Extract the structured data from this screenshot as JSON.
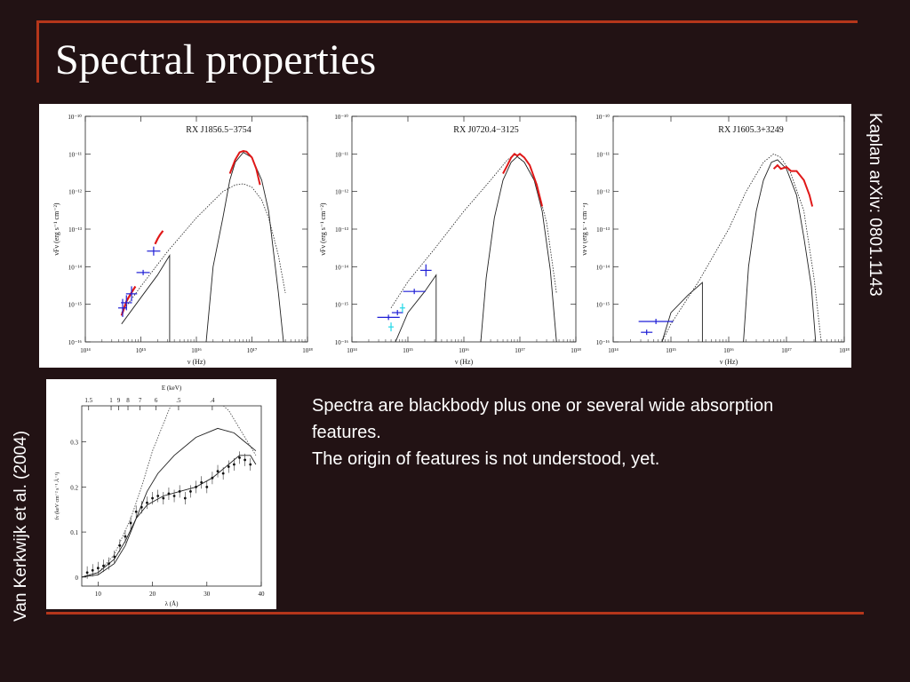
{
  "slide": {
    "title": "Spectral properties",
    "side_caption_right": "Kaplan arXiv: 0801.1143",
    "side_caption_left": "Van Kerkwijk et al. (2004)",
    "description": [
      "Spectra are blackbody plus one or several wide absorption features.",
      "The origin of features is not understood, yet."
    ]
  },
  "colors": {
    "background": "#221214",
    "accent": "#b5361b",
    "text": "#ffffff",
    "optical_points": "#1f1fd6",
    "xray_points": "#e01818",
    "uv_points": "#22d8e8"
  },
  "chart_data": [
    {
      "type": "line",
      "title": "RX J1856.5−3754",
      "xlabel": "ν (Hz)",
      "ylabel": "νFν (erg s⁻¹ cm⁻²)",
      "xscale": "log",
      "yscale": "log",
      "xlim": [
        100000000000000.0,
        1e+18
      ],
      "ylim": [
        1e-16,
        1e-10
      ],
      "xtick_labels": [
        "10¹⁴",
        "10¹⁵",
        "10¹⁶",
        "10¹⁷",
        "10¹⁸"
      ],
      "ytick_labels": [
        "10⁻¹⁶",
        "10⁻¹⁵",
        "10⁻¹⁴",
        "10⁻¹³",
        "10⁻¹²",
        "10⁻¹¹",
        "10⁻¹⁰"
      ],
      "series": [
        {
          "style": "dotted",
          "x": [
            450000000000000.0,
            1000000000000000.0,
            3000000000000000.0,
            1e+16,
            3e+16,
            5e+16,
            7e+16,
            1e+17,
            1.5e+17,
            2e+17,
            3e+17,
            4e+17
          ],
          "y": [
            6e-16,
            3e-15,
            2.5e-14,
            2e-13,
            1e-12,
            1.5e-12,
            1.6e-12,
            1.3e-12,
            6e-13,
            2e-13,
            2e-14,
            2e-15
          ]
        },
        {
          "style": "solid",
          "x": [
            450000000000000.0,
            1000000000000000.0,
            2000000000000000.0,
            3300000000000000.0,
            3300000000000000.0
          ],
          "y": [
            3e-16,
            1.5e-15,
            6e-15,
            2e-14,
            1e-16
          ]
        },
        {
          "style": "solid",
          "x": [
            1.5e+16,
            2e+16,
            3e+16,
            4e+16,
            5e+16,
            7e+16,
            1e+17,
            1.5e+17,
            2e+17,
            3e+17,
            3.7e+17
          ],
          "y": [
            1e-16,
            1e-14,
            2e-13,
            2e-12,
            6e-12,
            1.1e-11,
            8e-12,
            2e-12,
            3e-13,
            2e-15,
            1e-16
          ]
        },
        {
          "style": "xray",
          "x": [
            4e+16,
            5e+16,
            6e+16,
            7e+16,
            8e+16,
            1e+17,
            1.2e+17,
            1.4e+17
          ],
          "y": [
            3e-12,
            7e-12,
            1.1e-11,
            1.2e-11,
            1.15e-11,
            8e-12,
            4e-12,
            1.5e-12
          ]
        },
        {
          "style": "optical-red",
          "x": [
            450000000000000.0,
            500000000000000.0,
            550000000000000.0,
            600000000000000.0,
            700000000000000.0,
            800000000000000.0
          ],
          "y": [
            5e-16,
            8e-16,
            1.2e-15,
            1.5e-15,
            2.2e-15,
            3e-15
          ]
        },
        {
          "style": "uv-red",
          "x": [
            1800000000000000.0,
            2000000000000000.0,
            2200000000000000.0,
            2500000000000000.0
          ],
          "y": [
            4e-14,
            5.5e-14,
            7e-14,
            9e-14
          ]
        }
      ],
      "errorbars": [
        {
          "x": 470000000000000.0,
          "y": 8e-16,
          "dx": 0.04,
          "dy": 0.12
        },
        {
          "x": 550000000000000.0,
          "y": 1.1e-15,
          "dx": 0.05,
          "dy": 0.1
        },
        {
          "x": 680000000000000.0,
          "y": 1.9e-15,
          "dx": 0.05,
          "dy": 0.1
        },
        {
          "x": 1100000000000000.0,
          "y": 7e-15,
          "dx": 0.06,
          "dy": 0
        },
        {
          "x": 1700000000000000.0,
          "y": 2.6e-14,
          "dx": 0.06,
          "dy": 0.06
        }
      ]
    },
    {
      "type": "line",
      "title": "RX J0720.4−3125",
      "xlabel": "ν (Hz)",
      "ylabel": "νFν (erg s⁻¹ cm⁻²)",
      "xscale": "log",
      "yscale": "log",
      "xlim": [
        100000000000000.0,
        1e+18
      ],
      "ylim": [
        1e-16,
        1e-10
      ],
      "xtick_labels": [
        "10¹⁴",
        "10¹⁵",
        "10¹⁶",
        "10¹⁷",
        "10¹⁸"
      ],
      "ytick_labels": [
        "10⁻¹⁶",
        "10⁻¹⁵",
        "10⁻¹⁴",
        "10⁻¹³",
        "10⁻¹²",
        "10⁻¹¹",
        "10⁻¹⁰"
      ],
      "series": [
        {
          "style": "dotted",
          "x": [
            500000000000000.0,
            1000000000000000.0,
            3000000000000000.0,
            1e+16,
            3e+16,
            6e+16,
            8e+16,
            1.2e+17,
            2e+17,
            3e+17,
            4.5e+17
          ],
          "y": [
            8e-16,
            4e-15,
            3e-14,
            3e-13,
            2e-12,
            7e-12,
            9.5e-12,
            6e-12,
            1.5e-12,
            1.5e-13,
            2e-15
          ]
        },
        {
          "style": "solid",
          "x": [
            600000000000000.0,
            1000000000000000.0,
            2000000000000000.0,
            3200000000000000.0,
            3200000000000000.0
          ],
          "y": [
            1e-16,
            6e-16,
            2.2e-15,
            6e-15,
            1e-16
          ]
        },
        {
          "style": "solid",
          "x": [
            2e+16,
            2.5e+16,
            3.5e+16,
            5e+16,
            7e+16,
            9e+16,
            1.2e+17,
            1.8e+17,
            2.5e+17,
            3.5e+17,
            4.5e+17
          ],
          "y": [
            1e-16,
            5e-15,
            2e-13,
            2e-12,
            6e-12,
            8.5e-12,
            6e-12,
            2e-12,
            3e-13,
            8e-15,
            1e-16
          ]
        },
        {
          "style": "xray",
          "x": [
            5e+16,
            6e+16,
            7e+16,
            8e+16,
            9e+16,
            1e+17,
            1.2e+17,
            1.5e+17,
            2e+17,
            2.5e+17
          ],
          "y": [
            3e-12,
            5e-12,
            8e-12,
            1e-11,
            9e-12,
            1e-11,
            8e-12,
            5e-12,
            1.5e-12,
            4e-13
          ]
        }
      ],
      "errorbars": [
        {
          "x": 450000000000000.0,
          "y": 4.5e-16,
          "dx": 0.1,
          "dy": 0
        },
        {
          "x": 650000000000000.0,
          "y": 6e-16,
          "dx": 0.05,
          "dy": 0
        },
        {
          "x": 1300000000000000.0,
          "y": 2.2e-15,
          "dx": 0.1,
          "dy": 0
        },
        {
          "x": 2100000000000000.0,
          "y": 8e-15,
          "dx": 0.05,
          "dy": 0.08
        }
      ],
      "uv_points": [
        {
          "x": 500000000000000.0,
          "y": 2.5e-16
        },
        {
          "x": 800000000000000.0,
          "y": 8e-16
        }
      ]
    },
    {
      "type": "line",
      "title": "RX J1605.3+3249",
      "xlabel": "ν (Hz)",
      "ylabel": "νFν (erg s⁻¹ cm⁻²)",
      "xscale": "log",
      "yscale": "log",
      "xlim": [
        100000000000000.0,
        1e+18
      ],
      "ylim": [
        1e-16,
        1e-10
      ],
      "xtick_labels": [
        "10¹⁴",
        "10¹⁵",
        "10¹⁶",
        "10¹⁷",
        "10¹⁸"
      ],
      "ytick_labels": [
        "10⁻¹⁶",
        "10⁻¹⁵",
        "10⁻¹⁴",
        "10⁻¹³",
        "10⁻¹²",
        "10⁻¹¹",
        "10⁻¹⁰"
      ],
      "series": [
        {
          "style": "dotted",
          "x": [
            700000000000000.0,
            1000000000000000.0,
            3000000000000000.0,
            1e+16,
            2e+16,
            4e+16,
            6e+16,
            8e+16,
            1.2e+17,
            2e+17,
            3e+17,
            4e+17
          ],
          "y": [
            1e-16,
            3e-16,
            4e-15,
            1e-13,
            1e-12,
            6e-12,
            1e-11,
            8e-12,
            3e-12,
            3e-13,
            5e-15,
            1e-16
          ]
        },
        {
          "style": "solid",
          "x": [
            700000000000000.0,
            1000000000000000.0,
            2000000000000000.0,
            3500000000000000.0,
            3500000000000000.0
          ],
          "y": [
            1e-16,
            6e-16,
            1.8e-15,
            3.8e-15,
            1e-16
          ]
        },
        {
          "style": "solid",
          "x": [
            1.8e+16,
            2.2e+16,
            3e+16,
            4e+16,
            5.5e+16,
            7e+16,
            1e+17,
            1.5e+17,
            2e+17,
            2.7e+17,
            3.2e+17
          ],
          "y": [
            1e-16,
            1e-14,
            3e-13,
            2e-12,
            6e-12,
            7e-12,
            4e-12,
            8e-13,
            6e-14,
            3e-15,
            1e-16
          ]
        },
        {
          "style": "xray",
          "x": [
            6e+16,
            7e+16,
            8e+16,
            1e+17,
            1.2e+17,
            1.5e+17,
            2e+17,
            2.5e+17,
            2.8e+17
          ],
          "y": [
            4e-12,
            5e-12,
            4e-12,
            4.5e-12,
            3.5e-12,
            3.5e-12,
            2e-12,
            8e-13,
            4e-13
          ]
        }
      ],
      "errorbars": [
        {
          "x": 550000000000000.0,
          "y": 3.5e-16,
          "dx": 0.15,
          "dy": 0
        },
        {
          "x": 380000000000000.0,
          "y": 1.8e-16,
          "dx": 0.05,
          "dy": 0
        }
      ]
    },
    {
      "type": "line",
      "top_axis_title": "E (keV)",
      "top_tick_labels": [
        "1.5",
        "1",
        "9",
        "8",
        "7",
        "6",
        ".5",
        ".4"
      ],
      "xlabel": "λ (Å)",
      "ylabel": "fν (keV cm⁻² s⁻¹ Å⁻¹)",
      "xlim": [
        7,
        40
      ],
      "ylim": [
        -0.02,
        0.38
      ],
      "xtick_labels": [
        "10",
        "20",
        "30",
        "40"
      ],
      "ytick_labels": [
        "0",
        "0.1",
        "0.2",
        "0.3"
      ],
      "series": [
        {
          "style": "dotted",
          "x": [
            7,
            10,
            13,
            16,
            18,
            20,
            23,
            26
          ],
          "y": [
            0.0,
            0.01,
            0.05,
            0.13,
            0.2,
            0.28,
            0.37,
            0.45
          ]
        },
        {
          "style": "dotted",
          "x": [
            33,
            34,
            35,
            36,
            37,
            38,
            39
          ],
          "y": [
            0.38,
            0.37,
            0.35,
            0.33,
            0.31,
            0.29,
            0.27
          ]
        },
        {
          "style": "solid",
          "x": [
            7,
            10,
            13,
            15,
            17,
            19,
            21,
            24,
            28,
            32,
            35,
            37,
            39
          ],
          "y": [
            0.0,
            0.005,
            0.03,
            0.07,
            0.13,
            0.19,
            0.23,
            0.27,
            0.31,
            0.33,
            0.32,
            0.3,
            0.28
          ]
        },
        {
          "style": "solid",
          "x": [
            7,
            10,
            13,
            15,
            17,
            19,
            22,
            25,
            28,
            31,
            34,
            36,
            38,
            39
          ],
          "y": [
            0.0,
            0.01,
            0.04,
            0.08,
            0.13,
            0.16,
            0.18,
            0.19,
            0.2,
            0.22,
            0.25,
            0.27,
            0.27,
            0.25
          ]
        }
      ],
      "data_points": {
        "x": [
          8,
          9,
          10,
          11,
          12,
          13,
          14,
          15,
          16,
          17,
          18,
          19,
          20,
          21,
          22,
          23,
          24,
          25,
          26,
          27,
          28,
          29,
          30,
          31,
          32,
          33,
          34,
          35,
          36,
          37,
          38
        ],
        "y": [
          0.01,
          0.015,
          0.02,
          0.025,
          0.03,
          0.045,
          0.07,
          0.09,
          0.12,
          0.145,
          0.155,
          0.165,
          0.175,
          0.18,
          0.175,
          0.185,
          0.18,
          0.19,
          0.175,
          0.19,
          0.2,
          0.21,
          0.2,
          0.22,
          0.235,
          0.23,
          0.245,
          0.25,
          0.265,
          0.26,
          0.25
        ]
      }
    }
  ]
}
